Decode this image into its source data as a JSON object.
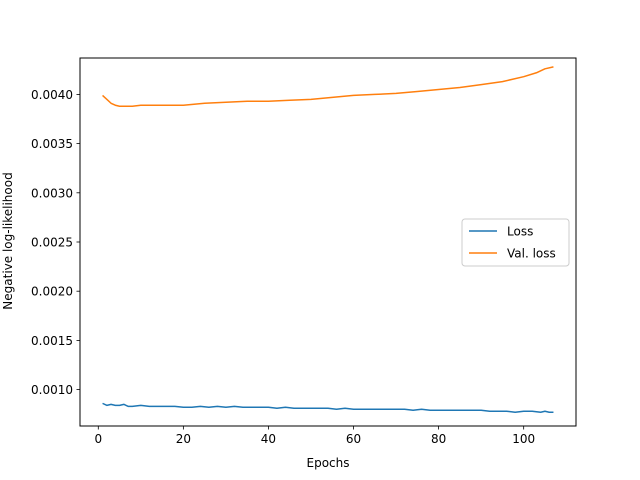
{
  "chart_data": {
    "type": "line",
    "xlabel": "Epochs",
    "ylabel": "Negative log-likelihood",
    "xlim": [
      -4.3,
      112.3
    ],
    "ylim": [
      0.00063,
      0.00437
    ],
    "xticks": [
      0,
      20,
      40,
      60,
      80,
      100
    ],
    "xtick_labels": [
      "0",
      "20",
      "40",
      "60",
      "80",
      "100"
    ],
    "yticks": [
      0.001,
      0.0015,
      0.002,
      0.0025,
      0.003,
      0.0035,
      0.004
    ],
    "ytick_labels": [
      "0.0010",
      "0.0015",
      "0.0020",
      "0.0025",
      "0.0030",
      "0.0035",
      "0.0040"
    ],
    "grid": false,
    "legend_position": "center-right",
    "series": [
      {
        "name": "Loss",
        "color": "#1f77b4",
        "x": [
          1,
          2,
          3,
          4,
          5,
          6,
          7,
          8,
          10,
          12,
          14,
          16,
          18,
          20,
          22,
          24,
          26,
          28,
          30,
          32,
          34,
          36,
          38,
          40,
          42,
          44,
          46,
          48,
          50,
          52,
          54,
          56,
          58,
          60,
          62,
          64,
          66,
          68,
          70,
          72,
          74,
          76,
          78,
          80,
          82,
          84,
          86,
          88,
          90,
          92,
          94,
          96,
          98,
          100,
          102,
          104,
          105,
          106,
          107
        ],
        "y": [
          0.00086,
          0.00084,
          0.00085,
          0.00084,
          0.00084,
          0.00085,
          0.00083,
          0.00083,
          0.00084,
          0.00083,
          0.00083,
          0.00083,
          0.00083,
          0.00082,
          0.00082,
          0.00083,
          0.00082,
          0.00083,
          0.00082,
          0.00083,
          0.00082,
          0.00082,
          0.00082,
          0.00082,
          0.00081,
          0.00082,
          0.00081,
          0.00081,
          0.00081,
          0.00081,
          0.00081,
          0.0008,
          0.00081,
          0.0008,
          0.0008,
          0.0008,
          0.0008,
          0.0008,
          0.0008,
          0.0008,
          0.00079,
          0.0008,
          0.00079,
          0.00079,
          0.00079,
          0.00079,
          0.00079,
          0.00079,
          0.00079,
          0.00078,
          0.00078,
          0.00078,
          0.00077,
          0.00078,
          0.00078,
          0.00077,
          0.00078,
          0.00077,
          0.00077
        ]
      },
      {
        "name": "Val. loss",
        "color": "#ff7f0e",
        "x": [
          1,
          2,
          3,
          4,
          5,
          6,
          7,
          8,
          10,
          12,
          15,
          20,
          25,
          30,
          35,
          40,
          45,
          50,
          55,
          60,
          65,
          70,
          75,
          80,
          85,
          90,
          95,
          100,
          103,
          105,
          107
        ],
        "y": [
          0.00399,
          0.00395,
          0.00391,
          0.00389,
          0.00388,
          0.00388,
          0.00388,
          0.00388,
          0.00389,
          0.00389,
          0.00389,
          0.00389,
          0.00391,
          0.00392,
          0.00393,
          0.00393,
          0.00394,
          0.00395,
          0.00397,
          0.00399,
          0.004,
          0.00401,
          0.00403,
          0.00405,
          0.00407,
          0.0041,
          0.00413,
          0.00418,
          0.00422,
          0.00426,
          0.00428
        ]
      }
    ]
  }
}
